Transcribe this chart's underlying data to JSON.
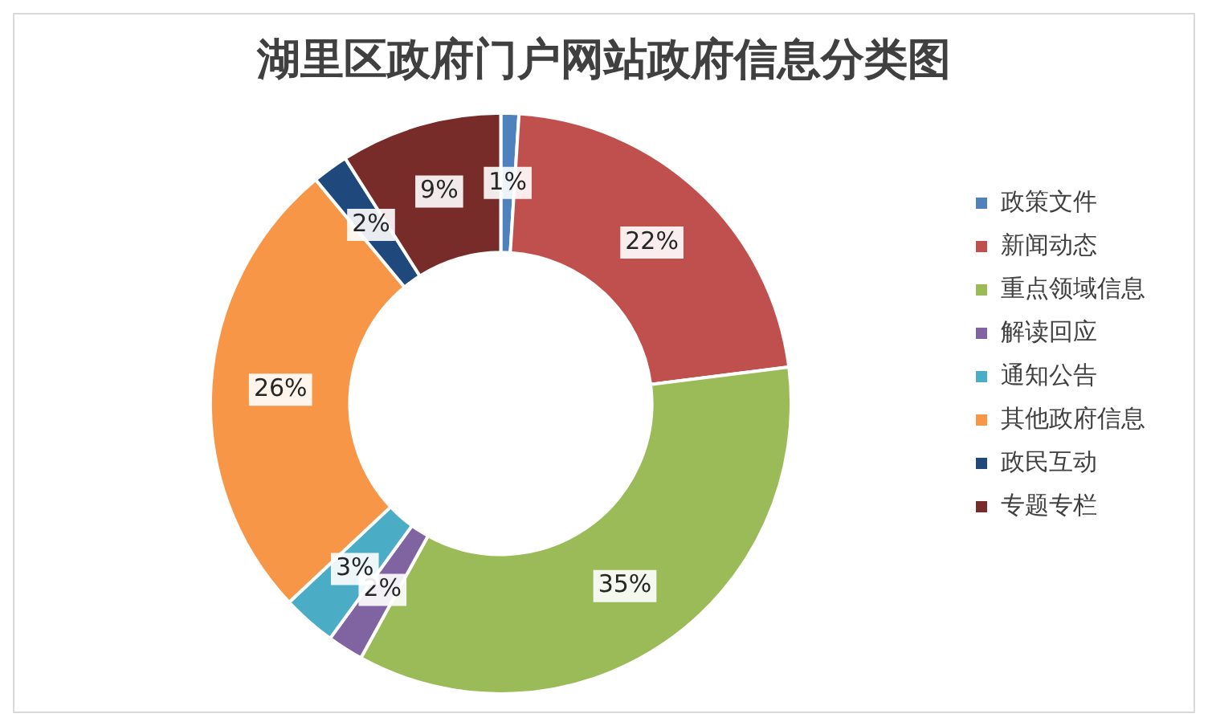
{
  "chart_data": {
    "type": "donut",
    "title": "湖里区政府门户网站政府信息分类图",
    "categories": [
      "政策文件",
      "新闻动态",
      "重点领域信息",
      "解读回应",
      "通知公告",
      "其他政府信息",
      "政民互动",
      "专题专栏"
    ],
    "values": [
      1,
      22,
      35,
      2,
      3,
      26,
      2,
      9
    ],
    "value_labels": [
      "1%",
      "22%",
      "35%",
      "2%",
      "3%",
      "26%",
      "2%",
      "9%"
    ],
    "colors": [
      "#4f81bd",
      "#c0504d",
      "#9bbb59",
      "#8064a2",
      "#4bacc6",
      "#f79646",
      "#1f497d",
      "#772c2a"
    ],
    "legend": "right"
  }
}
